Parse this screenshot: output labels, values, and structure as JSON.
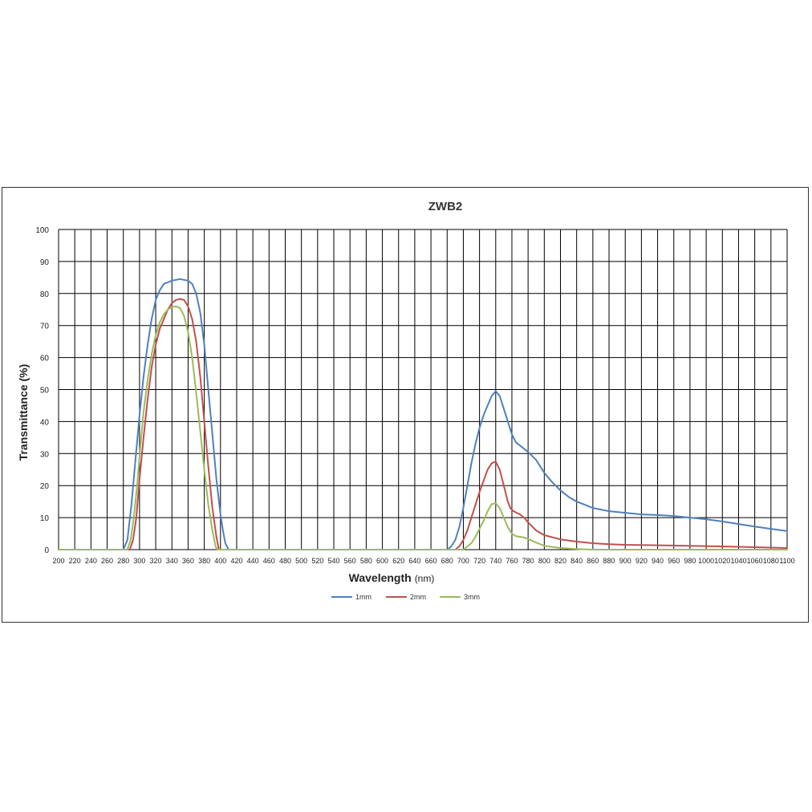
{
  "chart_data": {
    "type": "line",
    "title": "ZWB2",
    "xlabel": "Wavelength",
    "xlabel_unit": "(nm)",
    "ylabel": "Transmittance (%)",
    "xlim": [
      200,
      1100
    ],
    "ylim": [
      0,
      100
    ],
    "xticks": [
      200,
      220,
      240,
      260,
      280,
      300,
      320,
      340,
      360,
      380,
      400,
      420,
      440,
      460,
      480,
      500,
      520,
      540,
      560,
      580,
      600,
      620,
      640,
      660,
      680,
      700,
      720,
      740,
      760,
      780,
      800,
      820,
      840,
      860,
      880,
      900,
      920,
      940,
      960,
      980,
      1000,
      1020,
      1040,
      1060,
      1080,
      1100
    ],
    "yticks": [
      0,
      10,
      20,
      30,
      40,
      50,
      60,
      70,
      80,
      90,
      100
    ],
    "grid": true,
    "legend_position": "bottom",
    "series": [
      {
        "name": "1mm",
        "color": "#4f81bd",
        "points": [
          [
            200,
            0
          ],
          [
            280,
            0
          ],
          [
            285,
            3
          ],
          [
            290,
            14
          ],
          [
            295,
            28
          ],
          [
            300,
            42
          ],
          [
            305,
            54
          ],
          [
            310,
            64
          ],
          [
            315,
            72
          ],
          [
            320,
            78
          ],
          [
            325,
            81
          ],
          [
            330,
            83
          ],
          [
            340,
            84
          ],
          [
            350,
            84.5
          ],
          [
            360,
            84
          ],
          [
            365,
            83
          ],
          [
            370,
            80
          ],
          [
            375,
            74
          ],
          [
            380,
            64
          ],
          [
            385,
            50
          ],
          [
            390,
            36
          ],
          [
            395,
            22
          ],
          [
            400,
            11
          ],
          [
            403,
            6
          ],
          [
            406,
            2
          ],
          [
            410,
            0
          ],
          [
            680,
            0
          ],
          [
            685,
            1
          ],
          [
            690,
            3
          ],
          [
            695,
            7
          ],
          [
            700,
            13
          ],
          [
            705,
            20
          ],
          [
            710,
            27
          ],
          [
            715,
            33
          ],
          [
            720,
            38
          ],
          [
            725,
            42
          ],
          [
            730,
            45
          ],
          [
            735,
            48
          ],
          [
            740,
            49.5
          ],
          [
            745,
            48
          ],
          [
            750,
            44
          ],
          [
            755,
            40
          ],
          [
            760,
            36
          ],
          [
            765,
            33.5
          ],
          [
            770,
            32.5
          ],
          [
            775,
            31.5
          ],
          [
            780,
            30.5
          ],
          [
            790,
            28
          ],
          [
            800,
            24
          ],
          [
            810,
            21
          ],
          [
            820,
            18.5
          ],
          [
            830,
            16.5
          ],
          [
            840,
            15
          ],
          [
            860,
            13
          ],
          [
            880,
            12
          ],
          [
            900,
            11.5
          ],
          [
            920,
            11
          ],
          [
            940,
            10.8
          ],
          [
            960,
            10.5
          ],
          [
            980,
            10
          ],
          [
            1000,
            9.5
          ],
          [
            1020,
            8.8
          ],
          [
            1040,
            8
          ],
          [
            1060,
            7.2
          ],
          [
            1080,
            6.5
          ],
          [
            1100,
            5.8
          ]
        ]
      },
      {
        "name": "2mm",
        "color": "#c0504d",
        "points": [
          [
            200,
            0
          ],
          [
            288,
            0
          ],
          [
            292,
            3
          ],
          [
            296,
            10
          ],
          [
            300,
            22
          ],
          [
            305,
            35
          ],
          [
            310,
            47
          ],
          [
            315,
            57
          ],
          [
            320,
            64
          ],
          [
            325,
            69
          ],
          [
            330,
            72
          ],
          [
            335,
            75
          ],
          [
            340,
            77
          ],
          [
            345,
            78
          ],
          [
            350,
            78.3
          ],
          [
            355,
            78
          ],
          [
            360,
            76
          ],
          [
            365,
            72
          ],
          [
            370,
            65
          ],
          [
            375,
            54
          ],
          [
            380,
            40
          ],
          [
            385,
            26
          ],
          [
            390,
            13
          ],
          [
            395,
            4
          ],
          [
            398,
            0
          ],
          [
            690,
            0
          ],
          [
            695,
            1
          ],
          [
            700,
            3
          ],
          [
            705,
            6
          ],
          [
            710,
            10
          ],
          [
            715,
            14
          ],
          [
            720,
            18
          ],
          [
            725,
            21.5
          ],
          [
            730,
            25
          ],
          [
            735,
            27
          ],
          [
            740,
            27.5
          ],
          [
            745,
            25
          ],
          [
            750,
            20
          ],
          [
            755,
            15
          ],
          [
            758,
            13
          ],
          [
            762,
            12
          ],
          [
            770,
            11
          ],
          [
            775,
            10
          ],
          [
            780,
            8.5
          ],
          [
            790,
            6
          ],
          [
            800,
            4.5
          ],
          [
            820,
            3.2
          ],
          [
            840,
            2.5
          ],
          [
            860,
            2
          ],
          [
            880,
            1.7
          ],
          [
            900,
            1.5
          ],
          [
            950,
            1.3
          ],
          [
            1000,
            1.1
          ],
          [
            1050,
            0.8
          ],
          [
            1100,
            0.5
          ]
        ]
      },
      {
        "name": "3mm",
        "color": "#9bbb59",
        "points": [
          [
            200,
            0
          ],
          [
            285,
            0
          ],
          [
            289,
            3
          ],
          [
            293,
            10
          ],
          [
            297,
            20
          ],
          [
            301,
            32
          ],
          [
            305,
            43
          ],
          [
            310,
            53
          ],
          [
            315,
            61
          ],
          [
            320,
            67
          ],
          [
            325,
            71
          ],
          [
            330,
            73.5
          ],
          [
            335,
            75
          ],
          [
            340,
            75.8
          ],
          [
            345,
            76
          ],
          [
            350,
            75.5
          ],
          [
            355,
            73
          ],
          [
            360,
            68
          ],
          [
            365,
            60
          ],
          [
            370,
            49
          ],
          [
            375,
            37
          ],
          [
            380,
            25
          ],
          [
            385,
            14
          ],
          [
            390,
            6
          ],
          [
            394,
            1
          ],
          [
            396,
            0
          ],
          [
            700,
            0
          ],
          [
            705,
            1
          ],
          [
            710,
            2
          ],
          [
            715,
            4
          ],
          [
            720,
            6.5
          ],
          [
            725,
            9
          ],
          [
            730,
            12
          ],
          [
            735,
            14.2
          ],
          [
            740,
            14.5
          ],
          [
            745,
            13
          ],
          [
            750,
            10
          ],
          [
            755,
            7
          ],
          [
            760,
            5
          ],
          [
            765,
            4.2
          ],
          [
            770,
            4
          ],
          [
            775,
            3.8
          ],
          [
            780,
            3.3
          ],
          [
            790,
            2.2
          ],
          [
            800,
            1.2
          ],
          [
            820,
            0.5
          ],
          [
            840,
            0.2
          ],
          [
            860,
            0
          ],
          [
            1100,
            0
          ]
        ]
      }
    ]
  }
}
